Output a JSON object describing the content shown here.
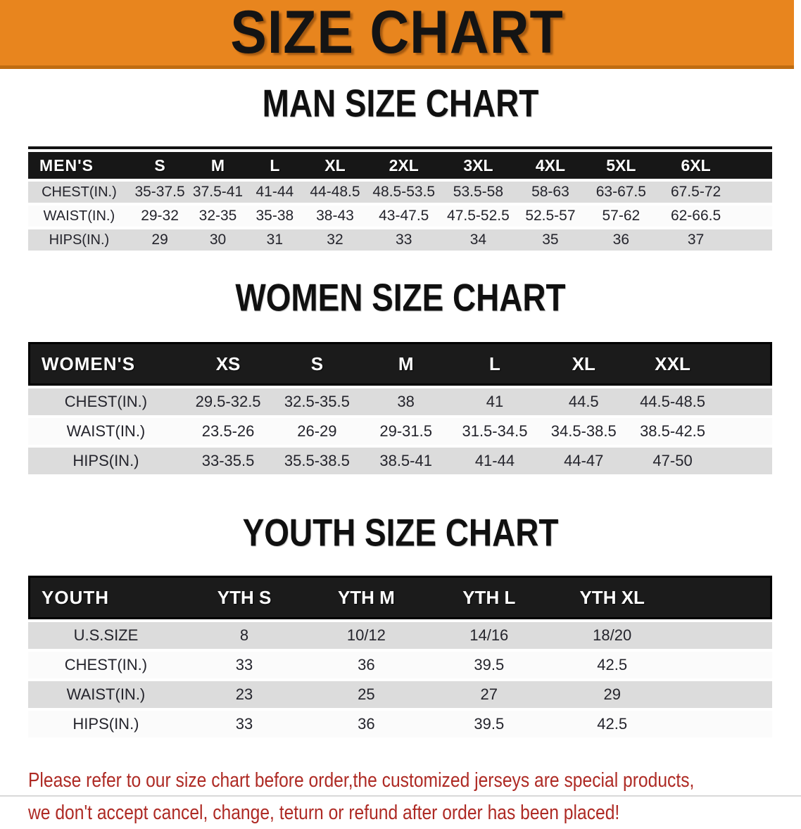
{
  "banner": {
    "title": "SIZE CHART"
  },
  "sections": {
    "men": {
      "title": "MAN SIZE CHART",
      "table": {
        "header_label": "MEN'S",
        "columns": [
          "S",
          "M",
          "L",
          "XL",
          "2XL",
          "3XL",
          "4XL",
          "5XL",
          "6XL"
        ],
        "rows": [
          {
            "label": "CHEST(IN.)",
            "values": [
              "35-37.5",
              "37.5-41",
              "41-44",
              "44-48.5",
              "48.5-53.5",
              "53.5-58",
              "58-63",
              "63-67.5",
              "67.5-72"
            ]
          },
          {
            "label": "WAIST(IN.)",
            "values": [
              "29-32",
              "32-35",
              "35-38",
              "38-43",
              "43-47.5",
              "47.5-52.5",
              "52.5-57",
              "57-62",
              "62-66.5"
            ]
          },
          {
            "label": "HIPS(IN.)",
            "values": [
              "29",
              "30",
              "31",
              "32",
              "33",
              "34",
              "35",
              "36",
              "37"
            ]
          }
        ]
      }
    },
    "women": {
      "title": "WOMEN SIZE CHART",
      "table": {
        "header_label": "WOMEN'S",
        "columns": [
          "XS",
          "S",
          "M",
          "L",
          "XL",
          "XXL"
        ],
        "rows": [
          {
            "label": "CHEST(IN.)",
            "values": [
              "29.5-32.5",
              "32.5-35.5",
              "38",
              "41",
              "44.5",
              "44.5-48.5"
            ]
          },
          {
            "label": "WAIST(IN.)",
            "values": [
              "23.5-26",
              "26-29",
              "29-31.5",
              "31.5-34.5",
              "34.5-38.5",
              "38.5-42.5"
            ]
          },
          {
            "label": "HIPS(IN.)",
            "values": [
              "33-35.5",
              "35.5-38.5",
              "38.5-41",
              "41-44",
              "44-47",
              "47-50"
            ]
          }
        ]
      }
    },
    "youth": {
      "title": "YOUTH SIZE CHART",
      "table": {
        "header_label": "YOUTH",
        "columns": [
          "YTH S",
          "YTH M",
          "YTH L",
          "YTH XL"
        ],
        "rows": [
          {
            "label": "U.S.SIZE",
            "values": [
              "8",
              "10/12",
              "14/16",
              "18/20"
            ]
          },
          {
            "label": "CHEST(IN.)",
            "values": [
              "33",
              "36",
              "39.5",
              "42.5"
            ]
          },
          {
            "label": "WAIST(IN.)",
            "values": [
              "23",
              "25",
              "27",
              "29"
            ]
          },
          {
            "label": "HIPS(IN.)",
            "values": [
              "33",
              "36",
              "39.5",
              "42.5"
            ]
          }
        ]
      }
    }
  },
  "note": {
    "lines": [
      "Please refer to our size chart before order,the customized jerseys are special products,",
      "we don't accept cancel, change, teturn or refund after order has been placed!"
    ]
  },
  "colors": {
    "banner_orange": "#E8851E",
    "banner_edge": "#C06C10",
    "header_black": "#171717",
    "row_gray": "#DCDCDC",
    "row_white": "#FBFBFB",
    "note_red": "#AE2A24",
    "cell_text": "#24242C"
  }
}
